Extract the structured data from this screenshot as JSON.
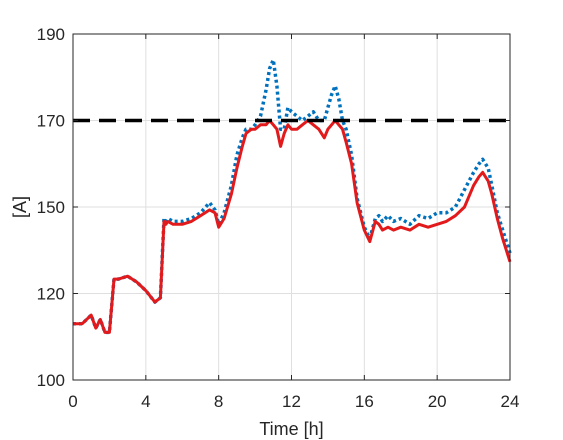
{
  "chart_data": {
    "type": "line",
    "title": "",
    "xlabel": "Time [h]",
    "ylabel": "[A]",
    "xlim": [
      0,
      24
    ],
    "ylim": [
      100,
      190
    ],
    "xticks": [
      0,
      4,
      8,
      12,
      16,
      20,
      24
    ],
    "yticks": [
      100,
      120,
      150,
      170,
      190
    ],
    "grid": true,
    "series": [
      {
        "style": "dotted",
        "color": "#0072BD",
        "x": [
          0,
          0.5,
          1,
          1.25,
          1.5,
          1.75,
          2,
          2.25,
          2.5,
          3,
          3.5,
          4,
          4.5,
          4.8,
          5,
          5.1,
          5.2,
          5.5,
          6,
          6.5,
          7,
          7.5,
          7.8,
          8,
          8.3,
          8.7,
          9,
          9.3,
          9.5,
          9.8,
          10,
          10.3,
          10.6,
          10.8,
          11,
          11.2,
          11.4,
          11.6,
          11.8,
          12,
          12.3,
          12.6,
          12.9,
          13.2,
          13.5,
          13.8,
          14,
          14.2,
          14.4,
          14.6,
          14.8,
          15,
          15.3,
          15.6,
          16,
          16.3,
          16.6,
          16.8,
          17,
          17.3,
          17.6,
          18,
          18.5,
          19,
          19.5,
          20,
          20.5,
          21,
          21.5,
          22,
          22.3,
          22.5,
          22.8,
          23,
          23.3,
          23.6,
          24
        ],
        "values": [
          113,
          113,
          115,
          112,
          114,
          111,
          111,
          125,
          125,
          126,
          124,
          121,
          118,
          119,
          146,
          145,
          146,
          145,
          145,
          146,
          148,
          151,
          149,
          144,
          148,
          155,
          162,
          166,
          168,
          168,
          169,
          171,
          177,
          182,
          184,
          178,
          168,
          168,
          173,
          172,
          171,
          170,
          171,
          172,
          170,
          170,
          173,
          176,
          178,
          175,
          170,
          168,
          162,
          152,
          143,
          139,
          146,
          147,
          145,
          147,
          145,
          146,
          144,
          147,
          146,
          148,
          148,
          150,
          154,
          158,
          160,
          161,
          159,
          155,
          148,
          142,
          134
        ]
      },
      {
        "style": "solid",
        "color": "#E31A1C",
        "x": [
          0,
          0.5,
          1,
          1.25,
          1.5,
          1.75,
          2,
          2.25,
          2.5,
          3,
          3.5,
          4,
          4.5,
          4.8,
          5,
          5.1,
          5.2,
          5.5,
          6,
          6.5,
          7,
          7.5,
          7.8,
          8,
          8.3,
          8.7,
          9,
          9.3,
          9.5,
          9.8,
          10,
          10.3,
          10.6,
          10.8,
          11,
          11.2,
          11.4,
          11.6,
          11.8,
          12,
          12.3,
          12.6,
          12.9,
          13.2,
          13.5,
          13.8,
          14,
          14.2,
          14.4,
          14.6,
          14.8,
          15,
          15.3,
          15.6,
          16,
          16.3,
          16.6,
          16.8,
          17,
          17.3,
          17.6,
          18,
          18.5,
          19,
          19.5,
          20,
          20.5,
          21,
          21.5,
          22,
          22.3,
          22.5,
          22.8,
          23,
          23.3,
          23.6,
          24
        ],
        "values": [
          113,
          113,
          115,
          112,
          114,
          111,
          111,
          125,
          125,
          126,
          124,
          121,
          118,
          119,
          145,
          144,
          145,
          144,
          144,
          145,
          147,
          149,
          148,
          143,
          146,
          153,
          159,
          164,
          167,
          168,
          168,
          169,
          169,
          170,
          169,
          168,
          164,
          167,
          169,
          168,
          168,
          169,
          170,
          169,
          168,
          166,
          168,
          169,
          170,
          169,
          168,
          165,
          160,
          151,
          142,
          138,
          145,
          144,
          142,
          143,
          142,
          143,
          142,
          144,
          143,
          144,
          145,
          147,
          150,
          155,
          157,
          158,
          156,
          153,
          146,
          139,
          131
        ]
      }
    ],
    "reference_lines": [
      {
        "y": 170,
        "style": "dashed",
        "color": "#000000"
      }
    ]
  }
}
